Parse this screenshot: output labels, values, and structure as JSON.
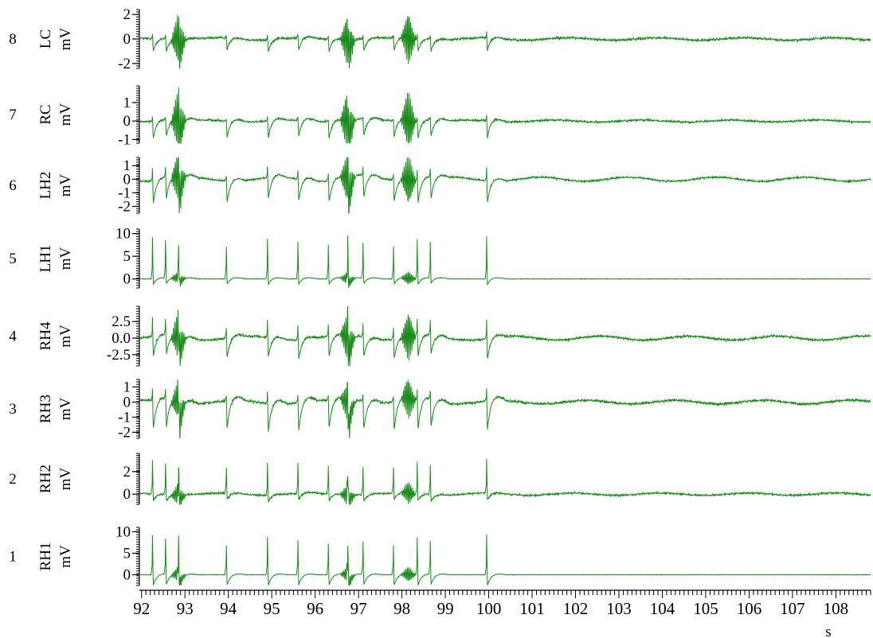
{
  "chart_data": {
    "type": "line",
    "x_unit": "s",
    "x_ticks": [
      92,
      93,
      94,
      95,
      96,
      97,
      98,
      99,
      100,
      101,
      102,
      103,
      104,
      105,
      106,
      107,
      108
    ],
    "xlim": [
      91.95,
      108.8
    ],
    "series_color": "#1a8a1a",
    "event_times": [
      92.25,
      92.55,
      92.85,
      93.95,
      94.9,
      95.6,
      96.3,
      96.75,
      97.1,
      97.8,
      98.35,
      98.65,
      99.95
    ],
    "pattern_notes": [],
    "channels": [
      {
        "index": "8",
        "name": "LC",
        "unit": "mV",
        "ticks": [
          "2",
          "0",
          "-2"
        ],
        "tick_values": [
          2,
          0,
          -2
        ],
        "ylim": [
          -2.4,
          2.4
        ]
      },
      {
        "index": "7",
        "name": "RC",
        "unit": "mV",
        "ticks": [
          "1",
          "0",
          "-1"
        ],
        "tick_values": [
          1,
          0,
          -1
        ],
        "ylim": [
          -1.2,
          1.9
        ]
      },
      {
        "index": "6",
        "name": "LH2",
        "unit": "mV",
        "ticks": [
          "1",
          "0",
          "-1",
          "-2"
        ],
        "tick_values": [
          1,
          0,
          -1,
          -2
        ],
        "ylim": [
          -2.5,
          1.6
        ]
      },
      {
        "index": "5",
        "name": "LH1",
        "unit": "mV",
        "ticks": [
          "10",
          "5",
          "0"
        ],
        "tick_values": [
          10,
          5,
          0
        ],
        "ylim": [
          -2.0,
          11.0
        ]
      },
      {
        "index": "4",
        "name": "RH4",
        "unit": "mV",
        "ticks": [
          "2.5",
          "0.0",
          "-2.5"
        ],
        "tick_values": [
          2.5,
          0.0,
          -2.5
        ],
        "ylim": [
          -4.2,
          4.8
        ]
      },
      {
        "index": "3",
        "name": "RH3",
        "unit": "mV",
        "ticks": [
          "1",
          "0",
          "-1",
          "-2"
        ],
        "tick_values": [
          1,
          0,
          -1,
          -2
        ],
        "ylim": [
          -2.4,
          1.5
        ]
      },
      {
        "index": "2",
        "name": "RH2",
        "unit": "mV",
        "ticks": [
          "2",
          "0"
        ],
        "tick_values": [
          2,
          0
        ],
        "ylim": [
          -0.9,
          3.6
        ]
      },
      {
        "index": "1",
        "name": "RH1",
        "unit": "mV",
        "ticks": [
          "10",
          "5",
          "0"
        ],
        "tick_values": [
          10,
          5,
          0
        ],
        "ylim": [
          -2.5,
          11.0
        ]
      }
    ]
  }
}
